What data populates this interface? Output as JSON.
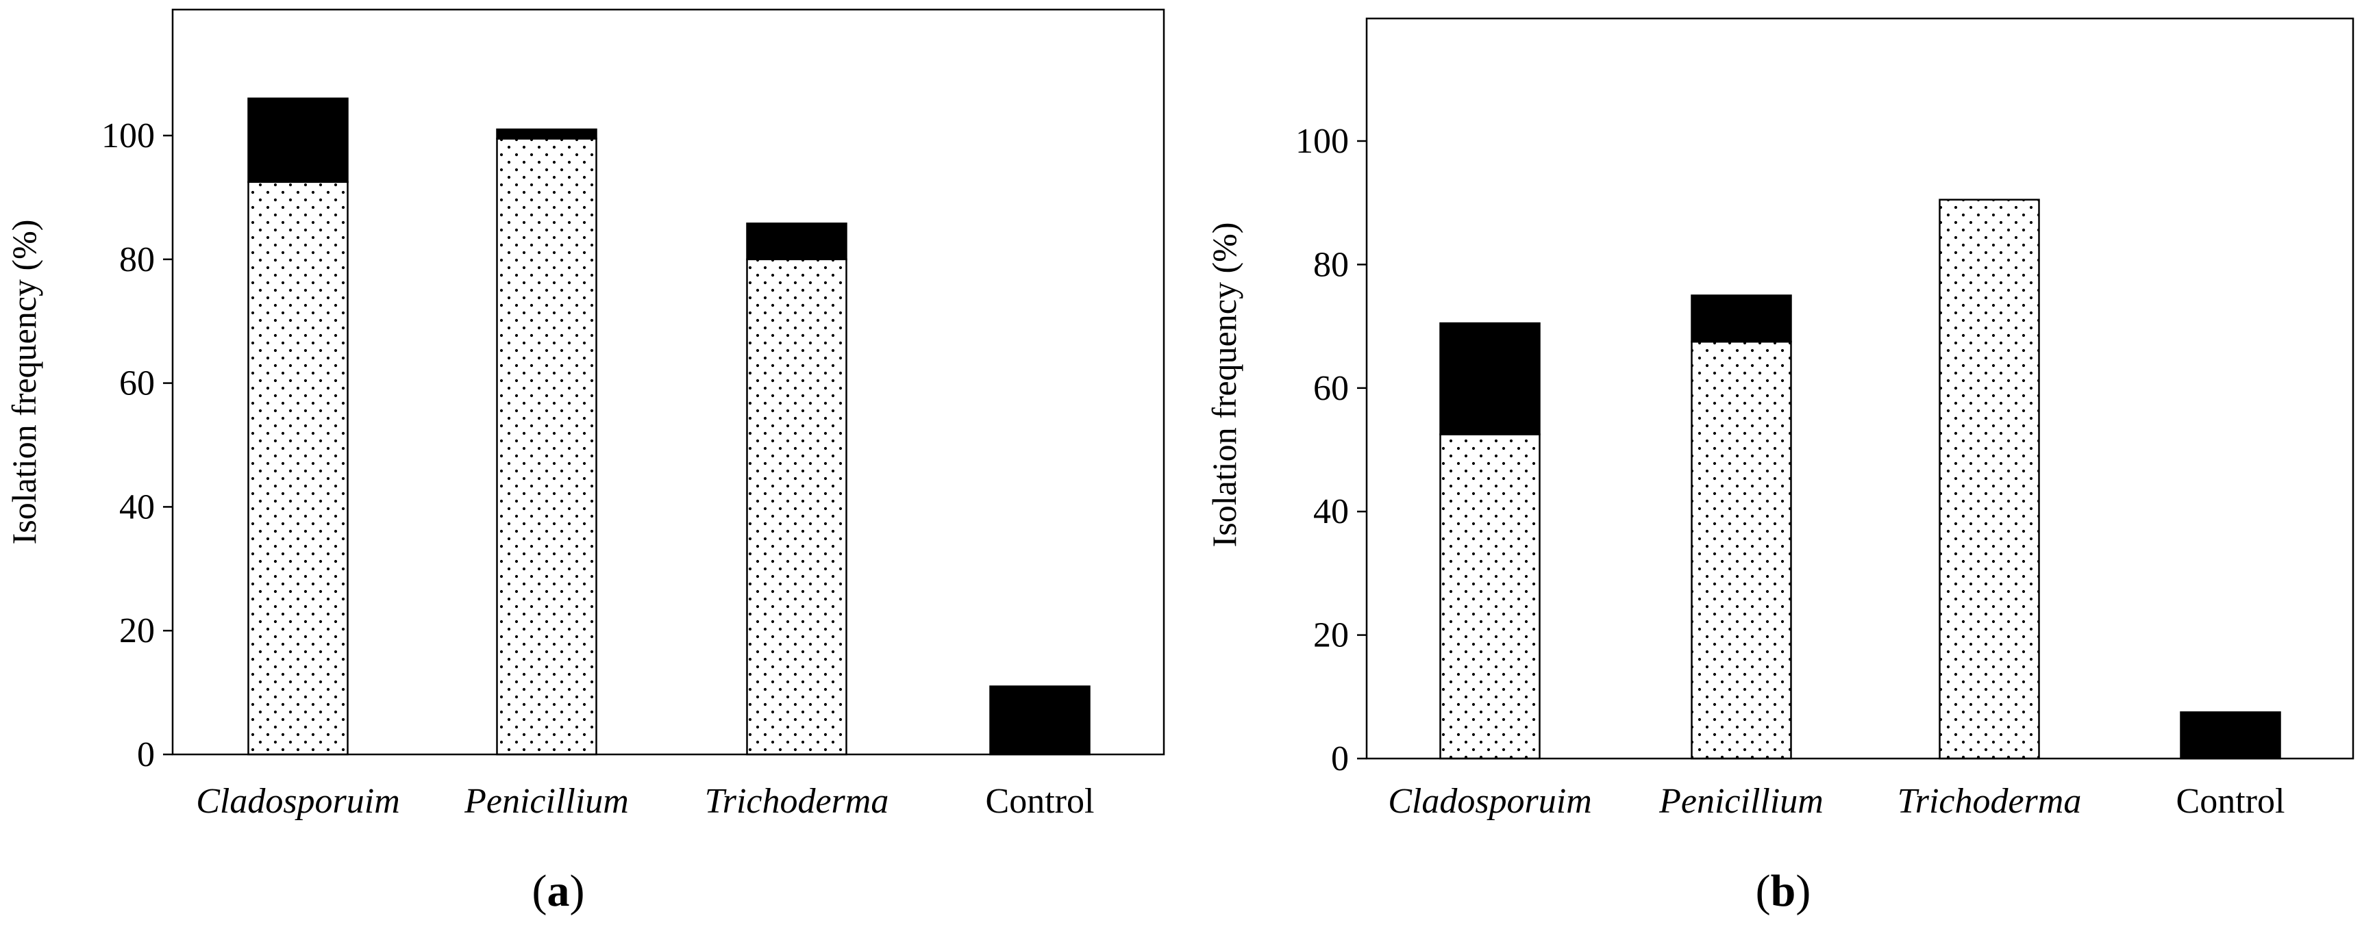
{
  "chart_data": [
    {
      "type": "bar",
      "stacked": true,
      "panel_label_open": "(",
      "panel_label_letter": "a",
      "panel_label_close": ")",
      "categories": [
        "Cladosporuim",
        "Penicillium",
        "Trichoderma",
        "Control"
      ],
      "category_italic": [
        true,
        true,
        true,
        false
      ],
      "series": [
        {
          "name": "dotted",
          "pattern": "dots",
          "values": [
            92.5,
            99.5,
            80,
            0
          ]
        },
        {
          "name": "solid",
          "pattern": "solid",
          "values": [
            13.5,
            1.5,
            5.8,
            11
          ]
        }
      ],
      "ylabel": "Isolation frequency (%)",
      "xlabel": "",
      "ylim": [
        0,
        120
      ],
      "yticks": [
        0,
        20,
        40,
        60,
        80,
        100
      ],
      "ytick_labels": [
        "0",
        "20",
        "40",
        "60",
        "80",
        "100"
      ],
      "grid": false,
      "legend": "none"
    },
    {
      "type": "bar",
      "stacked": true,
      "panel_label_open": "(",
      "panel_label_letter": "b",
      "panel_label_close": ")",
      "categories": [
        "Cladosporuim",
        "Penicillium",
        "Trichoderma",
        "Control"
      ],
      "category_italic": [
        true,
        true,
        true,
        false
      ],
      "series": [
        {
          "name": "dotted",
          "pattern": "dots",
          "values": [
            52.5,
            67.5,
            90.5,
            0
          ]
        },
        {
          "name": "solid",
          "pattern": "solid",
          "values": [
            18,
            7.5,
            0,
            7.5
          ]
        }
      ],
      "ylabel": "Isolation frequency (%)",
      "xlabel": "",
      "ylim": [
        0,
        120
      ],
      "yticks": [
        0,
        20,
        40,
        60,
        80,
        100
      ],
      "ytick_labels": [
        "0",
        "20",
        "40",
        "60",
        "80",
        "100"
      ],
      "grid": false,
      "legend": "none"
    }
  ],
  "colors": {
    "solid": "#000000",
    "dots": "#000000",
    "bar_background": "#ffffff",
    "axis": "#000000"
  }
}
